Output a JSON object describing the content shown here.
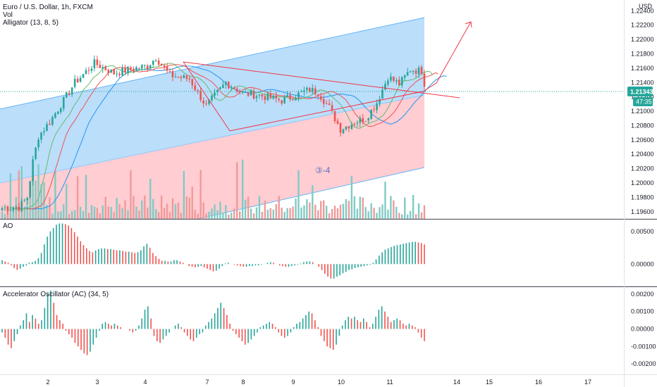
{
  "legend": {
    "symbol": "Euro / U.S. Dollar, 1h, FXCM",
    "volume": "Vol",
    "alligator": "Alligator (13, 8, 5)"
  },
  "currency": "USD",
  "price_marker": {
    "price": "1.21343",
    "countdown": "47:35"
  },
  "wave_label": "③-4",
  "panes": {
    "ao": {
      "title": "AO"
    },
    "ac": {
      "title": "Accelerator Oscillator (AC) (34, 5)"
    }
  },
  "colors": {
    "up": "#26a69a",
    "down": "#ef5350",
    "channel_upper_fill": "#bbdefb",
    "channel_lower_fill": "#ffcdd2",
    "trendline": "#f23645",
    "lips": "#66bb6a",
    "teeth": "#ef5350",
    "jaw": "#2196f3"
  },
  "chart_data": [
    {
      "type": "candlestick",
      "title": "Euro / U.S. Dollar, 1h, FXCM",
      "ylim": [
        1.195,
        1.2255
      ],
      "y_ticks": [
        "1.22400",
        "1.22200",
        "1.22000",
        "1.21800",
        "1.21600",
        "1.21400",
        "1.21200",
        "1.21000",
        "1.20800",
        "1.20600",
        "1.20400",
        "1.20200",
        "1.20000",
        "1.19800",
        "1.19600"
      ],
      "x_ticks": [
        "2",
        "3",
        "4",
        "7",
        "8",
        "9",
        "10",
        "11",
        "14",
        "15",
        "16",
        "17"
      ],
      "approx_path": [
        [
          0,
          1.1965
        ],
        [
          6,
          1.1966
        ],
        [
          9,
          1.198
        ],
        [
          11,
          1.203
        ],
        [
          13,
          1.2065
        ],
        [
          17,
          1.2085
        ],
        [
          22,
          1.2115
        ],
        [
          26,
          1.214
        ],
        [
          30,
          1.2155
        ],
        [
          33,
          1.2167
        ],
        [
          40,
          1.2153
        ],
        [
          44,
          1.2157
        ],
        [
          52,
          1.2163
        ],
        [
          55,
          1.2175
        ],
        [
          60,
          1.215
        ],
        [
          67,
          1.2145
        ],
        [
          73,
          1.2107
        ],
        [
          80,
          1.214
        ],
        [
          86,
          1.2125
        ],
        [
          92,
          1.2122
        ],
        [
          100,
          1.2115
        ],
        [
          110,
          1.213
        ],
        [
          113,
          1.2126
        ],
        [
          117,
          1.2105
        ],
        [
          121,
          1.2075
        ],
        [
          126,
          1.2085
        ],
        [
          130,
          1.209
        ],
        [
          134,
          1.2112
        ],
        [
          138,
          1.2148
        ],
        [
          142,
          1.2138
        ],
        [
          146,
          1.2158
        ],
        [
          150,
          1.2156
        ],
        [
          151,
          1.21343
        ]
      ],
      "alligator": [
        "Lips",
        "Teeth",
        "Jaw"
      ],
      "volume": "Vol"
    },
    {
      "type": "bar",
      "title": "AO",
      "y_ticks": [
        "0.00500",
        "0.00000"
      ],
      "ylim": [
        -0.0034,
        0.0068
      ],
      "values": [
        0.0006,
        0.0004,
        0.0002,
        -0.0002,
        -0.0006,
        -0.0009,
        -0.0007,
        -0.0004,
        -0.0002,
        0.0002,
        0.0003,
        0.0005,
        0.0009,
        0.0017,
        0.003,
        0.0042,
        0.005,
        0.0055,
        0.006,
        0.0062,
        0.0062,
        0.0061,
        0.0059,
        0.0055,
        0.0049,
        0.0042,
        0.0035,
        0.0029,
        0.0024,
        0.002,
        0.0018,
        0.0021,
        0.0023,
        0.0024,
        0.0024,
        0.0023,
        0.0023,
        0.0022,
        0.0021,
        0.0021,
        0.002,
        0.0019,
        0.0019,
        0.0018,
        0.0017,
        0.0018,
        0.0021,
        0.0027,
        0.0031,
        0.0025,
        0.0017,
        0.0012,
        0.0008,
        0.0005,
        0.0005,
        0.0004,
        0.0004,
        0.0006,
        0.0006,
        0.0004,
        0.0002,
        0.0,
        -0.0003,
        -0.0004,
        -0.0005,
        -0.0004,
        -0.0003,
        -0.0005,
        -0.0007,
        -0.0009,
        -0.0011,
        -0.001,
        -0.0007,
        -0.0003,
        0.0001,
        0.0002,
        0.0,
        -0.0001,
        -0.0002,
        -0.0003,
        -0.0004,
        -0.0004,
        -0.0003,
        -0.0003,
        -0.0002,
        -0.0002,
        -0.0001,
        0.0,
        0.0002,
        0.0003,
        0.0002,
        0.0,
        -0.0002,
        -0.0003,
        -0.0004,
        -0.0004,
        -0.0003,
        -0.0002,
        -0.0001,
        0.0001,
        0.0003,
        0.0004,
        0.0004,
        0.0003,
        0.0,
        -0.0004,
        -0.0009,
        -0.0015,
        -0.0019,
        -0.0022,
        -0.0022,
        -0.0019,
        -0.0017,
        -0.0014,
        -0.0012,
        -0.0009,
        -0.0008,
        -0.0006,
        -0.0005,
        -0.0004,
        -0.0003,
        -0.0002,
        -0.0001,
        0.0002,
        0.0007,
        0.0013,
        0.0018,
        0.0022,
        0.0024,
        0.0026,
        0.0028,
        0.0029,
        0.003,
        0.0031,
        0.0032,
        0.0033,
        0.0034,
        0.0034,
        0.0033,
        0.0032,
        0.003
      ]
    },
    {
      "type": "bar",
      "title": "Accelerator Oscillator (AC) (34, 5)",
      "y_ticks": [
        "0.00200",
        "0.00100",
        "0.00000",
        "-0.00100",
        "-0.00200"
      ],
      "ylim": [
        -0.0026,
        0.0024
      ],
      "values": [
        -0.0002,
        -0.0005,
        -0.0009,
        -0.0011,
        -0.0007,
        -0.0003,
        0.0002,
        0.0005,
        0.0009,
        0.0004,
        0.0008,
        0.0006,
        0.0003,
        0.0005,
        0.0012,
        0.002,
        0.0022,
        0.0015,
        0.0008,
        0.0005,
        0.0003,
        -0.0001,
        -0.0003,
        -0.0005,
        -0.0008,
        -0.001,
        -0.0012,
        -0.0014,
        -0.0015,
        -0.0013,
        -0.0009,
        -0.0005,
        -0.0001,
        0.0003,
        0.0004,
        0.0003,
        0.0002,
        0.0003,
        0.0002,
        0.0001,
        0.0,
        0.0,
        -0.0001,
        -0.0002,
        -0.0001,
        0.0002,
        0.0006,
        0.0011,
        0.0013,
        0.0006,
        -0.0004,
        -0.0007,
        -0.0008,
        -0.0006,
        -0.0004,
        -0.0002,
        0.0,
        0.0002,
        0.0003,
        0.0001,
        -0.0002,
        -0.0004,
        -0.0006,
        -0.0007,
        -0.0005,
        -0.0003,
        -0.0002,
        0.0002,
        0.0004,
        0.0006,
        0.0009,
        0.0012,
        0.0015,
        0.0012,
        0.0008,
        0.0003,
        -0.0001,
        -0.0003,
        -0.0005,
        -0.0007,
        -0.0009,
        -0.0008,
        -0.0006,
        -0.0004,
        -0.0002,
        0.0001,
        0.0002,
        0.0003,
        0.0004,
        0.0003,
        0.0001,
        -0.0002,
        -0.0004,
        -0.0005,
        -0.0004,
        -0.0002,
        0.0001,
        0.0003,
        0.0004,
        0.0006,
        0.0008,
        0.001,
        0.0009,
        0.0005,
        0.0001,
        -0.0004,
        -0.0007,
        -0.001,
        -0.0011,
        -0.0012,
        -0.0009,
        -0.0004,
        0.0002,
        0.0005,
        0.0007,
        0.0006,
        0.0007,
        0.0005,
        0.0004,
        0.0006,
        0.0004,
        0.0001,
        0.0003,
        0.0007,
        0.0011,
        0.0013,
        0.001,
        0.0007,
        0.0004,
        0.0005,
        0.0006,
        0.0005,
        0.0003,
        0.0002,
        0.0003,
        0.0002,
        0.0001,
        -0.0002,
        -0.0005,
        -0.0007
      ]
    }
  ]
}
